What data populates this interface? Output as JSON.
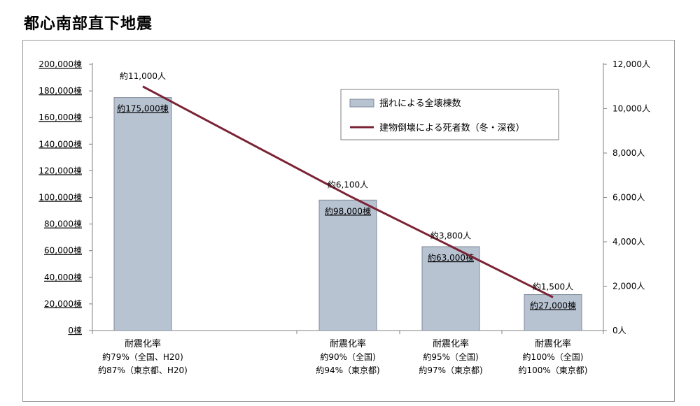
{
  "page": {
    "title": "都心南部直下地震"
  },
  "colors": {
    "bar_fill": "#b8c3d2",
    "bar_stroke": "#7f8a99",
    "line": "#7b2335"
  },
  "chart_data": {
    "type": "bar",
    "categories": [
      [
        "耐震化率",
        "約79%（全国、H20)",
        "約87%（東京都、H20)"
      ],
      [
        "耐震化率",
        "約90%（全国)",
        "約94%（東京都)"
      ],
      [
        "耐震化率",
        "約95%（全国)",
        "約97%（東京都)"
      ],
      [
        "耐震化率",
        "約100%（全国)",
        "約100%（東京都)"
      ]
    ],
    "series": [
      {
        "name": "揺れによる全壊棟数",
        "type": "bar",
        "axis": "left",
        "values": [
          175000,
          98000,
          63000,
          27000
        ],
        "labels": [
          "約175,000棟",
          "約98,000棟",
          "約63,000棟",
          "約27,000棟"
        ]
      },
      {
        "name": "建物倒壊による死者数（冬・深夜）",
        "type": "line",
        "axis": "right",
        "values": [
          11000,
          6100,
          3800,
          1500
        ],
        "labels": [
          "約11,000人",
          "約6,100人",
          "約3,800人",
          "約1,500人"
        ]
      }
    ],
    "y_left": {
      "lim": [
        0,
        200000
      ],
      "ticks": [
        0,
        20000,
        40000,
        60000,
        80000,
        100000,
        120000,
        140000,
        160000,
        180000,
        200000
      ],
      "tick_labels": [
        "0棟",
        "20,000棟",
        "40,000棟",
        "60,000棟",
        "80,000棟",
        "100,000棟",
        "120,000棟",
        "140,000棟",
        "160,000棟",
        "180,000棟",
        "200,000棟"
      ]
    },
    "y_right": {
      "lim": [
        0,
        12000
      ],
      "ticks": [
        0,
        2000,
        4000,
        6000,
        8000,
        10000,
        12000
      ],
      "tick_labels": [
        "0人",
        "2,000人",
        "4,000人",
        "6,000人",
        "8,000人",
        "10,000人",
        "12,000人"
      ]
    },
    "legend_position": "top-right",
    "grid": false
  }
}
